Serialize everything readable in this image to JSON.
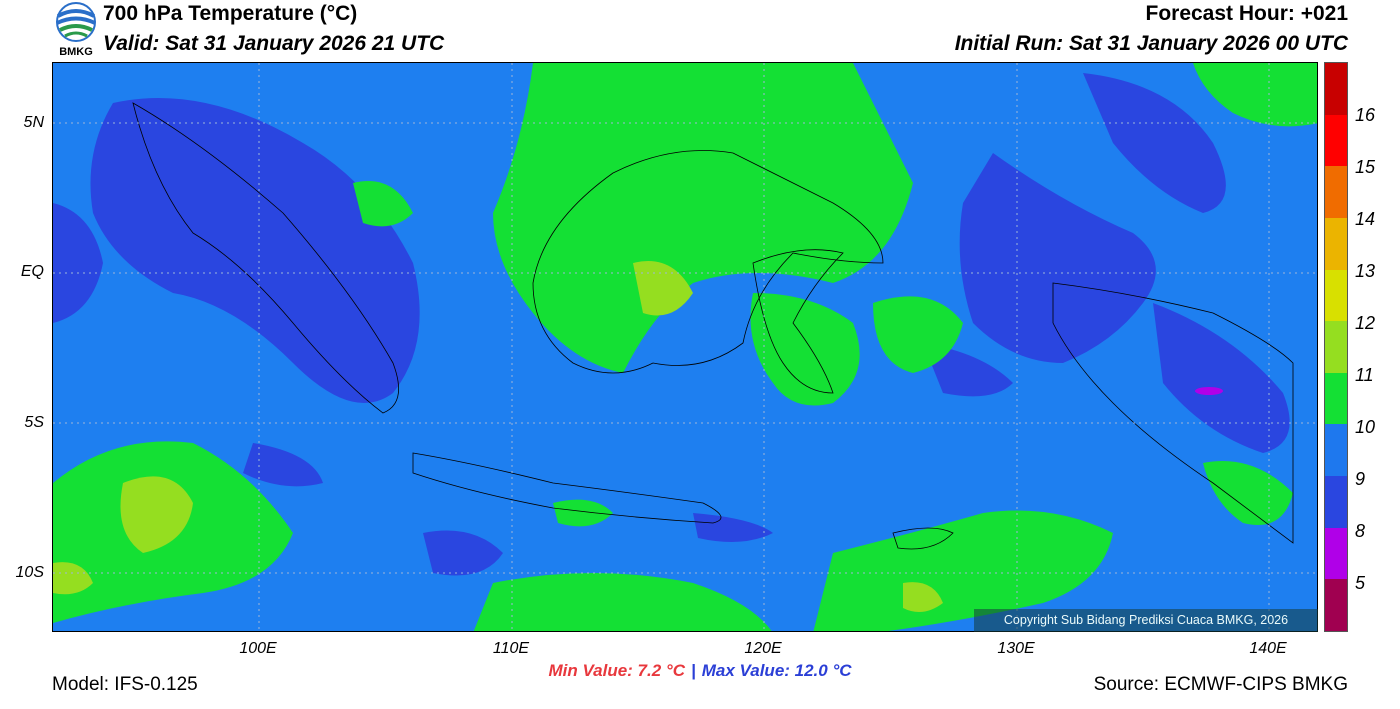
{
  "header": {
    "title": "700 hPa Temperature (°C)",
    "valid": "Valid: Sat 31 January 2026 21 UTC",
    "forecast_hour": "Forecast Hour: +021",
    "initial_run": "Initial Run: Sat 31 January 2026 00 UTC",
    "logo_text": "BMKG"
  },
  "axes": {
    "latitudes": [
      "5N",
      "EQ",
      "5S",
      "10S"
    ],
    "longitudes": [
      "100E",
      "110E",
      "120E",
      "130E",
      "140E"
    ]
  },
  "colorbar": {
    "labels": [
      "16",
      "15",
      "14",
      "13",
      "12",
      "11",
      "10",
      "9",
      "8",
      "5"
    ],
    "colors": [
      "#c80000",
      "#ff0000",
      "#f06c00",
      "#ebb400",
      "#d8e000",
      "#95de20",
      "#14e034",
      "#1e78ee",
      "#2a46e0",
      "#b000e8",
      "#a00050"
    ]
  },
  "map": {
    "background_color": "#1e7ff0",
    "copyright": "Copyright Sub Bidang Prediksi Cuaca BMKG, 2026"
  },
  "footer": {
    "min_value": "Min Value: 7.2 °C",
    "separator": "|",
    "max_value": "Max Value: 12.0 °C",
    "model": "Model: IFS-0.125",
    "source": "Source: ECMWF-CIPS BMKG"
  }
}
